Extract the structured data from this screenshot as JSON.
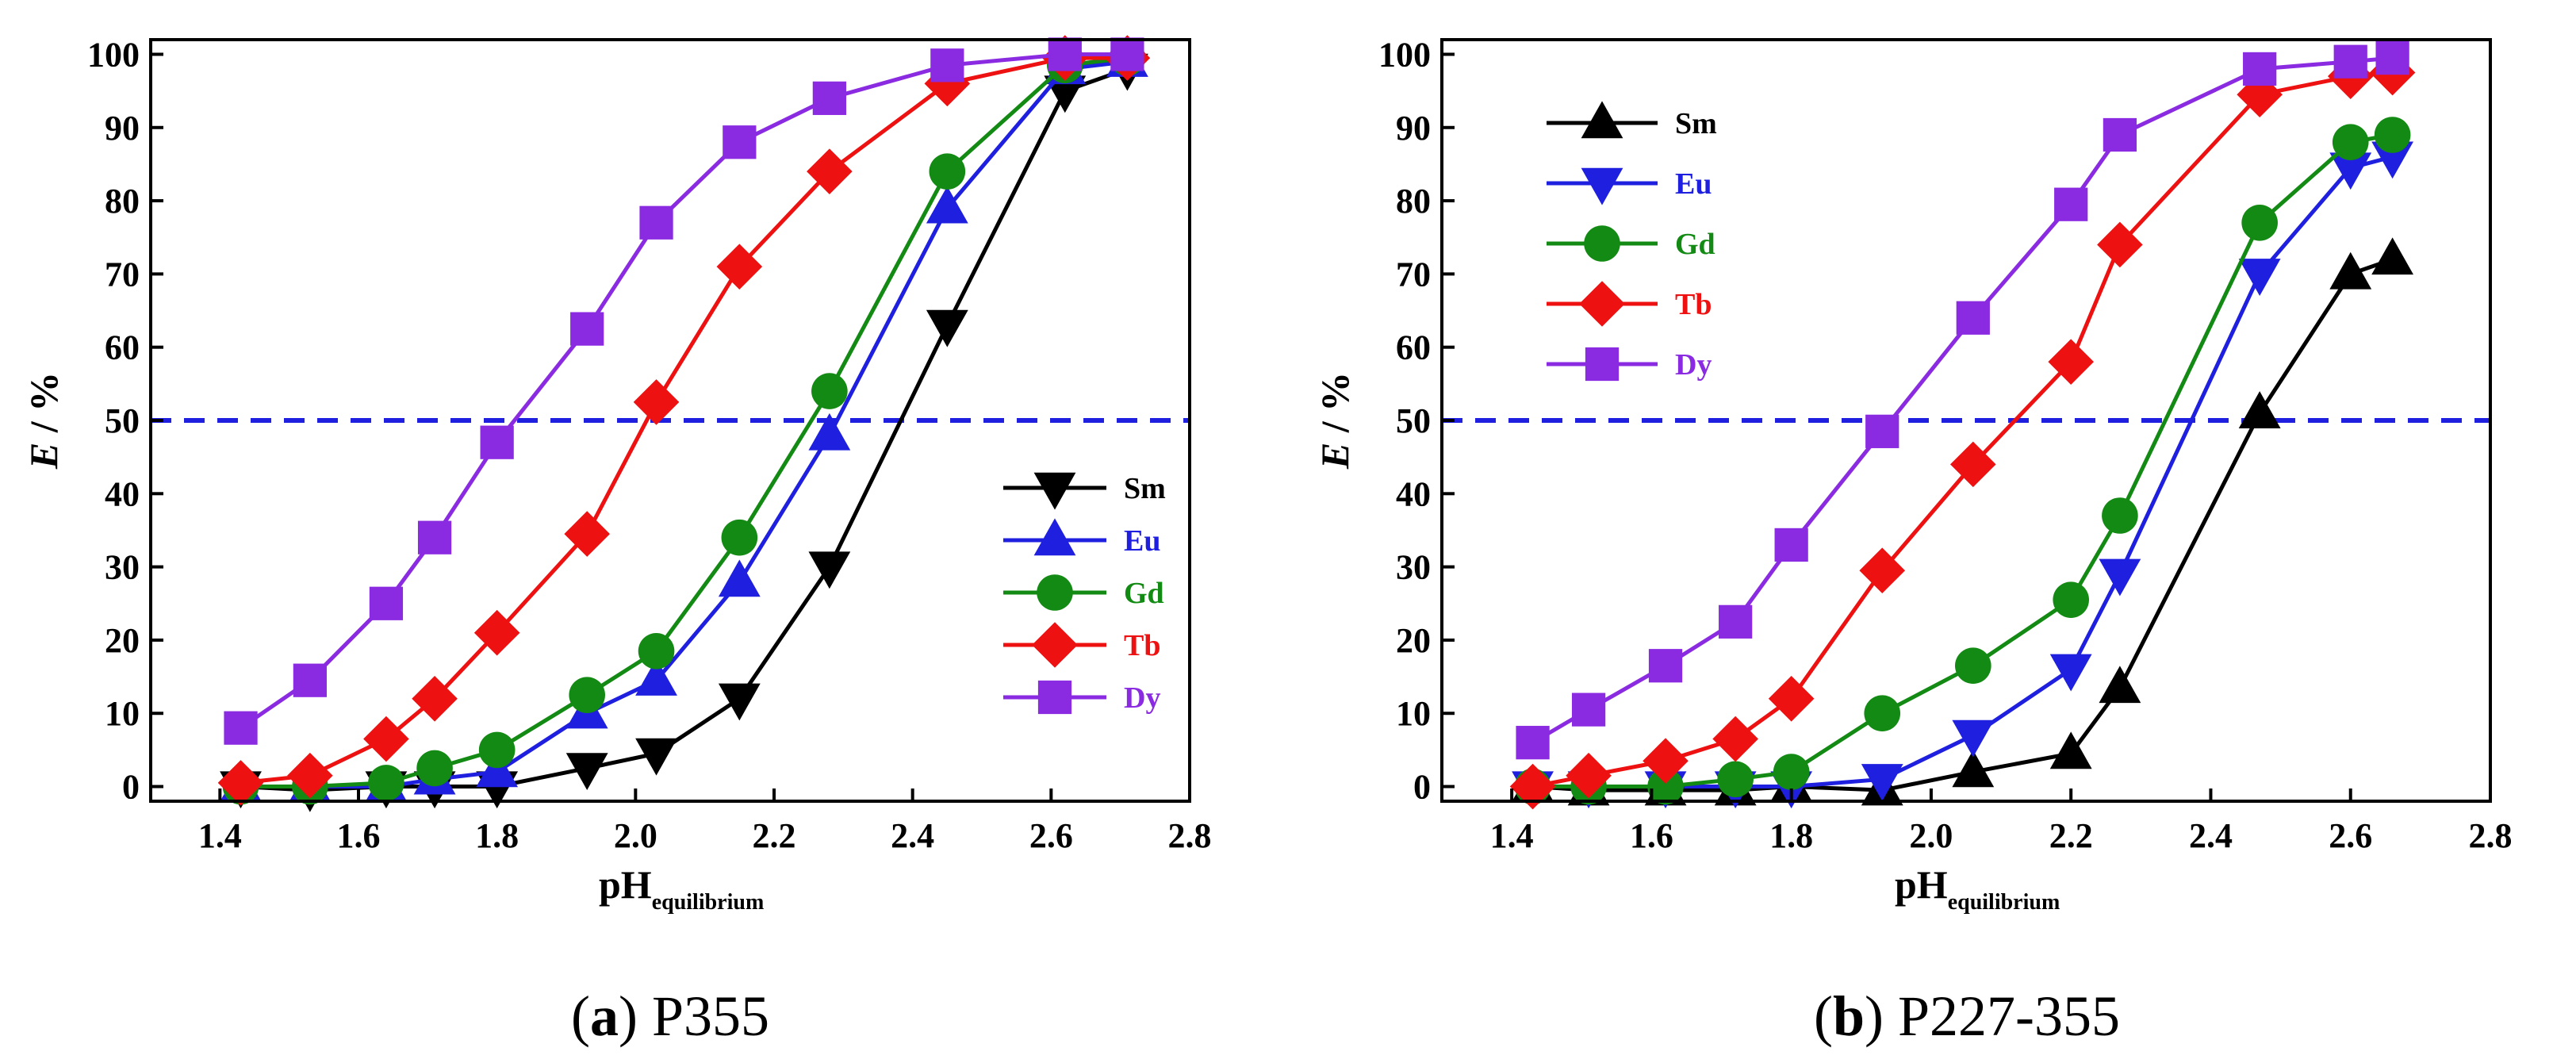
{
  "chart_data": [
    {
      "type": "line",
      "caption_letter": "a",
      "caption_text": "P355",
      "xlabel_main": "pH",
      "xlabel_sub": "equilibrium",
      "ylabel_italic": "E",
      "ylabel_rest": " / %",
      "xlim": [
        1.3,
        2.8
      ],
      "ylim": [
        -2,
        102
      ],
      "xticks": [
        "1.4",
        "1.6",
        "1.8",
        "2.0",
        "2.2",
        "2.4",
        "2.6",
        "2.8"
      ],
      "yticks": [
        "0",
        "10",
        "20",
        "30",
        "40",
        "50",
        "60",
        "70",
        "80",
        "90",
        "100"
      ],
      "reference_line": {
        "y": 50,
        "color": "#1f1fe0",
        "style": "dashed"
      },
      "legend_position": "lower-right",
      "series": [
        {
          "name": "Sm",
          "color": "#000000",
          "marker": "triangle-down",
          "x": [
            1.43,
            1.53,
            1.64,
            1.71,
            1.8,
            1.93,
            2.03,
            2.15,
            2.28,
            2.45,
            2.62,
            2.71
          ],
          "y": [
            0,
            -0.5,
            0,
            0,
            0,
            2.5,
            4.5,
            12,
            30,
            63,
            95,
            98
          ]
        },
        {
          "name": "Eu",
          "color": "#1f1fe0",
          "marker": "triangle-up",
          "x": [
            1.43,
            1.53,
            1.64,
            1.71,
            1.8,
            1.93,
            2.03,
            2.15,
            2.28,
            2.45,
            2.62,
            2.71
          ],
          "y": [
            0,
            0,
            0,
            1,
            2,
            10,
            14.5,
            28,
            48,
            79,
            98,
            99
          ]
        },
        {
          "name": "Gd",
          "color": "#138a13",
          "marker": "circle",
          "x": [
            1.43,
            1.53,
            1.64,
            1.71,
            1.8,
            1.93,
            2.03,
            2.15,
            2.28,
            2.45,
            2.62,
            2.71
          ],
          "y": [
            0,
            0,
            0.5,
            2.5,
            5,
            12.5,
            18.5,
            34,
            54,
            84,
            98.5,
            99.5
          ]
        },
        {
          "name": "Tb",
          "color": "#ee1111",
          "marker": "diamond",
          "x": [
            1.43,
            1.53,
            1.64,
            1.71,
            1.8,
            1.93,
            2.03,
            2.15,
            2.28,
            2.45,
            2.62,
            2.71
          ],
          "y": [
            0.5,
            1.5,
            6.5,
            12,
            21,
            34.5,
            52.5,
            71,
            84,
            96,
            99.5,
            99.5
          ]
        },
        {
          "name": "Dy",
          "color": "#8a2be2",
          "marker": "square",
          "x": [
            1.43,
            1.53,
            1.64,
            1.71,
            1.8,
            1.93,
            2.03,
            2.15,
            2.28,
            2.45,
            2.62,
            2.71
          ],
          "y": [
            8,
            14.5,
            25,
            34,
            47,
            62.5,
            77,
            88,
            94,
            98.5,
            100,
            100
          ]
        }
      ]
    },
    {
      "type": "line",
      "caption_letter": "b",
      "caption_text": "P227-355",
      "xlabel_main": "pH",
      "xlabel_sub": "equilibrium",
      "ylabel_italic": "E",
      "ylabel_rest": " / %",
      "xlim": [
        1.3,
        2.8
      ],
      "ylim": [
        -2,
        102
      ],
      "xticks": [
        "1.4",
        "1.6",
        "1.8",
        "2.0",
        "2.2",
        "2.4",
        "2.6",
        "2.8"
      ],
      "yticks": [
        "0",
        "10",
        "20",
        "30",
        "40",
        "50",
        "60",
        "70",
        "80",
        "90",
        "100"
      ],
      "reference_line": {
        "y": 50,
        "color": "#1f1fe0",
        "style": "dashed"
      },
      "legend_position": "upper-left",
      "series": [
        {
          "name": "Sm",
          "color": "#000000",
          "marker": "triangle-up",
          "x": [
            1.43,
            1.51,
            1.62,
            1.72,
            1.8,
            1.93,
            2.06,
            2.2,
            2.27,
            2.47,
            2.6,
            2.66
          ],
          "y": [
            0,
            -0.5,
            -0.5,
            -0.5,
            0,
            -0.5,
            2,
            4.5,
            13.5,
            51,
            70,
            72
          ]
        },
        {
          "name": "Eu",
          "color": "#1f1fe0",
          "marker": "triangle-down",
          "x": [
            1.43,
            1.51,
            1.62,
            1.72,
            1.8,
            1.93,
            2.06,
            2.2,
            2.27,
            2.47,
            2.6,
            2.66
          ],
          "y": [
            0,
            0,
            0,
            0,
            0,
            1,
            7,
            16,
            29,
            70,
            84.5,
            86
          ]
        },
        {
          "name": "Gd",
          "color": "#138a13",
          "marker": "circle",
          "x": [
            1.43,
            1.51,
            1.62,
            1.72,
            1.8,
            1.93,
            2.06,
            2.2,
            2.27,
            2.47,
            2.6,
            2.66
          ],
          "y": [
            0,
            0,
            0,
            1,
            2,
            10,
            16.5,
            25.5,
            37,
            77,
            88,
            89
          ]
        },
        {
          "name": "Tb",
          "color": "#ee1111",
          "marker": "diamond",
          "x": [
            1.43,
            1.51,
            1.62,
            1.72,
            1.8,
            1.93,
            2.06,
            2.2,
            2.27,
            2.47,
            2.6,
            2.66
          ],
          "y": [
            0,
            1.5,
            3.5,
            6.5,
            12,
            29.5,
            44,
            58,
            74,
            94.5,
            97,
            97.5
          ]
        },
        {
          "name": "Dy",
          "color": "#8a2be2",
          "marker": "square",
          "x": [
            1.43,
            1.51,
            1.62,
            1.72,
            1.8,
            1.93,
            2.06,
            2.2,
            2.27,
            2.47,
            2.6,
            2.66
          ],
          "y": [
            6,
            10.5,
            16.5,
            22.5,
            33,
            48.5,
            64,
            79.5,
            89,
            98,
            99,
            99.5
          ]
        }
      ]
    }
  ]
}
